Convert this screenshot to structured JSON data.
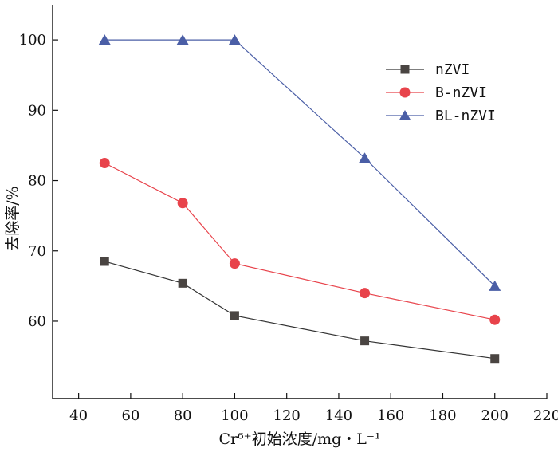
{
  "chart_data": {
    "type": "line",
    "title": "",
    "xlabel": "Cr⁶⁺初始浓度/mg・L⁻¹",
    "ylabel": "去除率/%",
    "xlim": [
      30,
      220
    ],
    "ylim": [
      49,
      105
    ],
    "xticks": [
      40,
      60,
      80,
      100,
      120,
      140,
      160,
      180,
      200,
      220
    ],
    "yticks": [
      60,
      70,
      80,
      90,
      100
    ],
    "legend_position": "top-right",
    "x": [
      50,
      80,
      100,
      150,
      200
    ],
    "series": [
      {
        "name": "nZVI",
        "marker": "square",
        "color": "#4a4542",
        "line_color": "#333333",
        "values": [
          68.5,
          65.4,
          60.8,
          57.2,
          54.7
        ]
      },
      {
        "name": "B-nZVI",
        "marker": "circle",
        "color": "#e8434b",
        "line_color": "#e8434b",
        "values": [
          82.5,
          76.8,
          68.2,
          64.0,
          60.2
        ]
      },
      {
        "name": "BL-nZVI",
        "marker": "triangle",
        "color": "#4a5ea6",
        "line_color": "#4a5ea6",
        "values": [
          100,
          100,
          100,
          83.2,
          65.0
        ]
      }
    ]
  }
}
